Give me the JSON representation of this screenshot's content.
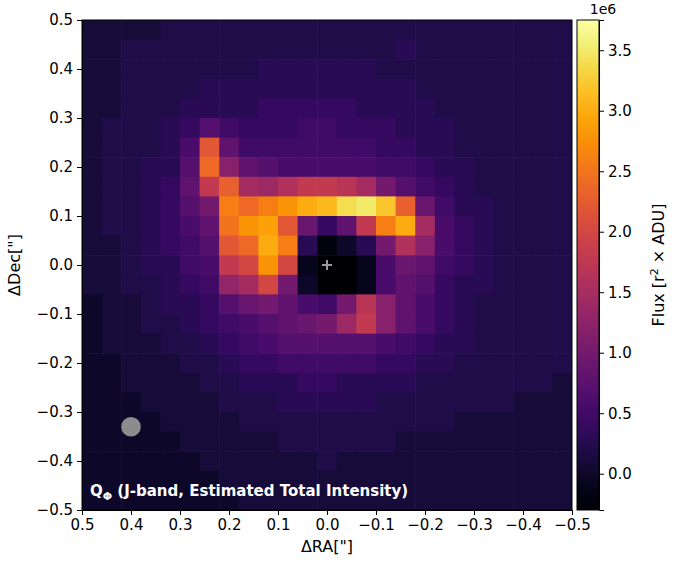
{
  "chart_data": {
    "type": "heatmap",
    "annotation": {
      "text": "Q",
      "subscript": "Φ",
      "rest": " (J-band, Estimated Total Intensity)"
    },
    "x_label": "ΔRA[\"]",
    "y_label": "ΔDec[\"]",
    "xlim": [
      0.5,
      -0.5
    ],
    "ylim": [
      -0.5,
      0.5
    ],
    "xticks": [
      0.5,
      0.4,
      0.3,
      0.2,
      0.1,
      {
        "value": 0,
        "label": "0.0"
      },
      {
        "value": -0.1,
        "label": "−0.1"
      },
      {
        "value": -0.2,
        "label": "−0.2"
      },
      {
        "value": -0.3,
        "label": "−0.3"
      },
      {
        "value": -0.4,
        "label": "−0.4"
      },
      {
        "value": -0.5,
        "label": "−0.5"
      }
    ],
    "yticks": [
      {
        "value": -0.5,
        "label": "−0.5"
      },
      {
        "value": -0.4,
        "label": "−0.4"
      },
      {
        "value": -0.3,
        "label": "−0.3"
      },
      {
        "value": -0.2,
        "label": "−0.2"
      },
      {
        "value": -0.1,
        "label": "−0.1"
      },
      {
        "value": 0,
        "label": "0.0"
      },
      0.1,
      0.2,
      0.3,
      0.4,
      0.5
    ],
    "color": "inferno",
    "colorbar": {
      "label": "Flux [r",
      "label_superscript": "2",
      "label_rest": " × ADU]",
      "offset_label": "1e6",
      "range": [
        -0.3,
        3.75
      ],
      "ticks": [
        {
          "value": 0,
          "label": "0.0"
        },
        0.5,
        {
          "value": 1,
          "label": "1.0"
        },
        1.5,
        {
          "value": 2,
          "label": "2.0"
        },
        2.5,
        {
          "value": 3,
          "label": "3.0"
        },
        3.5
      ]
    },
    "star": {
      "x": 0,
      "y": 0
    },
    "beam": {
      "x": 0.4,
      "y": -0.33,
      "radius": 0.02
    },
    "x": [
      0.48,
      0.44,
      0.4,
      0.36,
      0.32,
      0.28,
      0.24,
      0.2,
      0.16,
      0.12,
      0.08,
      0.04,
      0.0,
      -0.04,
      -0.08,
      -0.12,
      -0.16,
      -0.2,
      -0.24,
      -0.28,
      -0.32,
      -0.36,
      -0.4,
      -0.44,
      -0.48
    ],
    "y": [
      0.48,
      0.44,
      0.4,
      0.36,
      0.32,
      0.28,
      0.24,
      0.2,
      0.16,
      0.12,
      0.08,
      0.04,
      0.0,
      -0.04,
      -0.08,
      -0.12,
      -0.16,
      -0.2,
      -0.24,
      -0.28,
      -0.32,
      -0.36,
      -0.4,
      -0.44,
      -0.48
    ],
    "cells": [
      [
        0.1,
        0.1,
        0.1,
        0.1,
        0.2,
        0.2,
        0.2,
        0.2,
        0.2,
        0.2,
        0.2,
        0.2,
        0.2,
        0.2,
        0.2,
        0.2,
        0.2,
        0.2,
        0.2,
        0.2,
        0.2,
        0.2,
        0.2,
        0.2,
        0.2
      ],
      [
        0.1,
        0.1,
        0.2,
        0.2,
        0.2,
        0.2,
        0.2,
        0.2,
        0.2,
        0.2,
        0.2,
        0.2,
        0.2,
        0.2,
        0.2,
        0.2,
        0.3,
        0.2,
        0.2,
        0.2,
        0.2,
        0.2,
        0.2,
        0.2,
        0.2
      ],
      [
        0.1,
        0.1,
        0.2,
        0.2,
        0.2,
        0.2,
        0.2,
        0.2,
        0.2,
        0.3,
        0.3,
        0.3,
        0.3,
        0.3,
        0.3,
        0.2,
        0.2,
        0.2,
        0.2,
        0.2,
        0.2,
        0.2,
        0.2,
        0.2,
        0.2
      ],
      [
        0.1,
        0.1,
        0.2,
        0.2,
        0.2,
        0.2,
        0.3,
        0.3,
        0.3,
        0.3,
        0.3,
        0.3,
        0.3,
        0.3,
        0.3,
        0.3,
        0.3,
        0.2,
        0.2,
        0.2,
        0.2,
        0.2,
        0.2,
        0.2,
        0.2
      ],
      [
        0.1,
        0.1,
        0.2,
        0.2,
        0.2,
        0.3,
        0.3,
        0.3,
        0.3,
        0.4,
        0.4,
        0.4,
        0.4,
        0.4,
        0.3,
        0.3,
        0.3,
        0.3,
        0.2,
        0.2,
        0.2,
        0.2,
        0.2,
        0.2,
        0.2
      ],
      [
        0.1,
        0.2,
        0.2,
        0.2,
        0.3,
        0.4,
        0.7,
        0.5,
        0.4,
        0.4,
        0.4,
        0.5,
        0.5,
        0.4,
        0.4,
        0.4,
        0.3,
        0.3,
        0.3,
        0.2,
        0.2,
        0.2,
        0.2,
        0.2,
        0.2
      ],
      [
        0.1,
        0.2,
        0.2,
        0.2,
        0.3,
        0.6,
        2.2,
        0.8,
        0.5,
        0.5,
        0.5,
        0.5,
        0.5,
        0.5,
        0.5,
        0.4,
        0.4,
        0.3,
        0.3,
        0.2,
        0.2,
        0.2,
        0.2,
        0.2,
        0.2
      ],
      [
        0.1,
        0.2,
        0.2,
        0.3,
        0.3,
        0.7,
        2.4,
        1.2,
        0.8,
        0.7,
        0.6,
        0.6,
        0.6,
        0.6,
        0.6,
        0.5,
        0.5,
        0.4,
        0.3,
        0.3,
        0.2,
        0.2,
        0.2,
        0.2,
        0.2
      ],
      [
        0.1,
        0.2,
        0.2,
        0.3,
        0.4,
        0.8,
        1.8,
        2.3,
        1.5,
        1.4,
        1.6,
        1.8,
        1.8,
        1.7,
        1.5,
        1.0,
        0.7,
        0.5,
        0.4,
        0.3,
        0.2,
        0.2,
        0.2,
        0.2,
        0.2
      ],
      [
        0.1,
        0.2,
        0.2,
        0.3,
        0.4,
        0.7,
        1.0,
        2.6,
        2.4,
        2.6,
        2.8,
        3.0,
        3.1,
        3.4,
        3.5,
        3.2,
        2.3,
        0.9,
        0.5,
        0.3,
        0.3,
        0.2,
        0.2,
        0.2,
        0.2
      ],
      [
        0.1,
        0.2,
        0.2,
        0.3,
        0.4,
        0.6,
        0.8,
        2.5,
        2.8,
        2.9,
        2.2,
        0.9,
        0.4,
        0.8,
        1.8,
        2.6,
        3.0,
        1.5,
        0.6,
        0.4,
        0.3,
        0.2,
        0.2,
        0.2,
        0.2
      ],
      [
        0.1,
        0.1,
        0.2,
        0.3,
        0.4,
        0.5,
        0.7,
        2.2,
        2.4,
        3.0,
        2.6,
        0.3,
        -0.2,
        0.0,
        0.3,
        1.0,
        1.6,
        1.2,
        0.6,
        0.4,
        0.3,
        0.2,
        0.2,
        0.2,
        0.2
      ],
      [
        0.1,
        0.1,
        0.2,
        0.3,
        0.3,
        0.5,
        0.6,
        1.8,
        2.0,
        2.8,
        2.0,
        -0.1,
        -0.3,
        -0.3,
        -0.1,
        0.6,
        0.9,
        0.8,
        0.5,
        0.4,
        0.3,
        0.2,
        0.2,
        0.2,
        0.2
      ],
      [
        0.1,
        0.1,
        0.2,
        0.2,
        0.3,
        0.4,
        0.5,
        1.3,
        1.5,
        2.0,
        1.0,
        0.0,
        -0.3,
        -0.3,
        -0.1,
        0.6,
        0.8,
        0.7,
        0.4,
        0.3,
        0.3,
        0.2,
        0.2,
        0.2,
        0.2
      ],
      [
        0.0,
        0.1,
        0.1,
        0.2,
        0.3,
        0.3,
        0.4,
        0.7,
        0.9,
        1.0,
        0.8,
        0.6,
        0.5,
        1.0,
        1.7,
        1.2,
        0.8,
        0.6,
        0.4,
        0.3,
        0.2,
        0.2,
        0.2,
        0.2,
        0.2
      ],
      [
        0.0,
        0.1,
        0.1,
        0.2,
        0.2,
        0.3,
        0.4,
        0.5,
        0.6,
        0.7,
        0.8,
        0.9,
        1.0,
        1.4,
        1.8,
        1.2,
        0.8,
        0.6,
        0.4,
        0.3,
        0.2,
        0.2,
        0.2,
        0.2,
        0.2
      ],
      [
        0.0,
        0.1,
        0.1,
        0.1,
        0.2,
        0.2,
        0.3,
        0.4,
        0.5,
        0.6,
        0.7,
        0.7,
        0.7,
        0.7,
        0.7,
        0.6,
        0.5,
        0.4,
        0.3,
        0.3,
        0.2,
        0.2,
        0.2,
        0.2,
        0.2
      ],
      [
        0.0,
        0.0,
        0.1,
        0.1,
        0.1,
        0.2,
        0.2,
        0.3,
        0.4,
        0.4,
        0.5,
        0.5,
        0.5,
        0.5,
        0.5,
        0.4,
        0.4,
        0.3,
        0.3,
        0.2,
        0.2,
        0.2,
        0.2,
        0.2,
        0.2
      ],
      [
        0.0,
        0.0,
        0.1,
        0.1,
        0.1,
        0.1,
        0.2,
        0.2,
        0.3,
        0.3,
        0.3,
        0.4,
        0.4,
        0.3,
        0.3,
        0.3,
        0.3,
        0.2,
        0.2,
        0.2,
        0.2,
        0.2,
        0.2,
        0.2,
        0.1
      ],
      [
        0.0,
        0.0,
        0.0,
        0.1,
        0.1,
        0.1,
        0.1,
        0.2,
        0.2,
        0.2,
        0.3,
        0.3,
        0.3,
        0.3,
        0.3,
        0.2,
        0.2,
        0.2,
        0.2,
        0.2,
        0.2,
        0.2,
        0.1,
        0.1,
        0.1
      ],
      [
        0.0,
        0.0,
        0.0,
        0.0,
        0.1,
        0.1,
        0.1,
        0.1,
        0.2,
        0.2,
        0.2,
        0.2,
        0.2,
        0.2,
        0.2,
        0.2,
        0.2,
        0.2,
        0.2,
        0.1,
        0.1,
        0.1,
        0.1,
        0.1,
        0.1
      ],
      [
        0.0,
        0.0,
        0.0,
        0.0,
        0.0,
        0.1,
        0.1,
        0.1,
        0.1,
        0.1,
        0.2,
        0.2,
        0.2,
        0.2,
        0.2,
        0.2,
        0.1,
        0.1,
        0.1,
        0.1,
        0.1,
        0.1,
        0.1,
        0.1,
        0.1
      ],
      [
        0.0,
        0.0,
        0.0,
        0.0,
        0.0,
        0.0,
        0.1,
        0.1,
        0.1,
        0.1,
        0.1,
        0.1,
        0.2,
        0.1,
        0.1,
        0.1,
        0.1,
        0.1,
        0.1,
        0.1,
        0.1,
        0.1,
        0.1,
        0.1,
        0.1
      ],
      [
        0.0,
        0.0,
        0.0,
        0.0,
        0.0,
        0.0,
        0.0,
        0.1,
        0.1,
        0.1,
        0.1,
        0.1,
        0.1,
        0.1,
        0.1,
        0.1,
        0.1,
        0.1,
        0.1,
        0.1,
        0.1,
        0.1,
        0.1,
        0.1,
        0.1
      ],
      [
        0.0,
        0.0,
        0.0,
        0.0,
        0.0,
        0.0,
        0.0,
        0.0,
        0.1,
        0.1,
        0.1,
        0.1,
        0.1,
        0.1,
        0.1,
        0.1,
        0.1,
        0.1,
        0.1,
        0.1,
        0.1,
        0.1,
        0.1,
        0.1,
        0.1
      ]
    ]
  }
}
